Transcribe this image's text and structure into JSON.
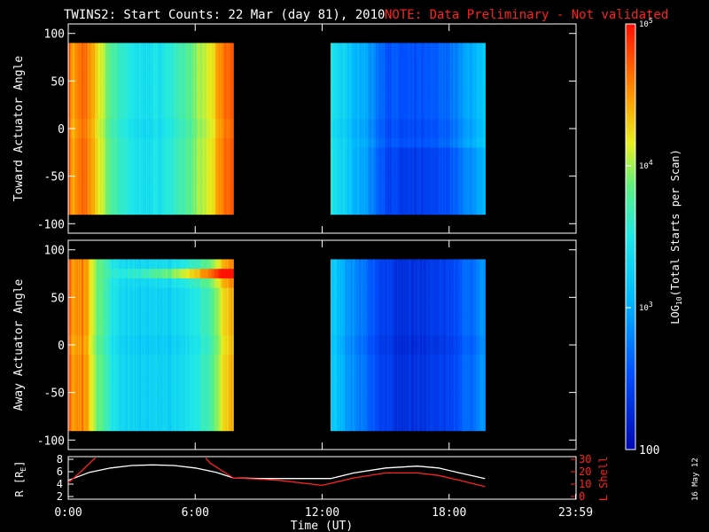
{
  "title": {
    "text": "TWINS2: Start Counts: 22 Mar (day  81), 2010",
    "note": "NOTE: Data Preliminary - Not validated",
    "note_color": "#ff2020"
  },
  "colorbar": {
    "label_main": "LOG",
    "label_sub": "10",
    "label_rest": "(Total Starts per Scan)",
    "ticks": [
      {
        "value": 100,
        "label": "100"
      },
      {
        "value": 1000,
        "label": "10",
        "sup": "3"
      },
      {
        "value": 10000,
        "label": "10",
        "sup": "4"
      },
      {
        "value": 100000,
        "label": "10",
        "sup": "5"
      }
    ],
    "range": [
      100,
      100000
    ],
    "scale": "log"
  },
  "side_text": "16 May 12",
  "chart_data": [
    {
      "type": "heatmap",
      "ylabel": "Toward Actuator Angle",
      "ylim": [
        -110,
        110
      ],
      "yticks": [
        "100",
        "50",
        "0",
        "-50",
        "-100"
      ],
      "ytick_values": [
        100,
        50,
        0,
        -50,
        -100
      ],
      "xlim_hours": [
        0,
        24
      ],
      "data_y_range": [
        -90,
        90
      ],
      "blocks": [
        {
          "t_start_hours": 0.0,
          "t_end_hours": 7.8,
          "profile": [
            {
              "t": 0.0,
              "log": 4.9
            },
            {
              "t": 0.2,
              "log": 4.4
            },
            {
              "t": 0.7,
              "log": 4.7
            },
            {
              "t": 1.3,
              "log": 4.3
            },
            {
              "t": 2.0,
              "log": 3.8
            },
            {
              "t": 3.0,
              "log": 3.45
            },
            {
              "t": 4.0,
              "log": 3.4
            },
            {
              "t": 5.0,
              "log": 3.6
            },
            {
              "t": 6.0,
              "log": 3.9
            },
            {
              "t": 6.8,
              "log": 4.2
            },
            {
              "t": 7.3,
              "log": 4.6
            },
            {
              "t": 7.8,
              "log": 4.75
            }
          ]
        },
        {
          "t_start_hours": 12.4,
          "t_end_hours": 19.7,
          "profile": [
            {
              "t": 12.4,
              "log": 3.5
            },
            {
              "t": 13.2,
              "log": 3.2
            },
            {
              "t": 14.0,
              "log": 3.0
            },
            {
              "t": 15.0,
              "log": 2.6
            },
            {
              "t": 16.0,
              "log": 2.5
            },
            {
              "t": 17.0,
              "log": 2.55
            },
            {
              "t": 18.0,
              "log": 2.7
            },
            {
              "t": 19.0,
              "log": 3.0
            },
            {
              "t": 19.7,
              "log": 3.2
            }
          ]
        }
      ]
    },
    {
      "type": "heatmap",
      "ylabel": "Away Actuator Angle",
      "ylim": [
        -110,
        110
      ],
      "yticks": [
        "100",
        "50",
        "0",
        "-50",
        "-100"
      ],
      "ytick_values": [
        100,
        50,
        0,
        -50,
        -100
      ],
      "xlim_hours": [
        0,
        24
      ],
      "data_y_range": [
        -90,
        90
      ],
      "blocks": [
        {
          "t_start_hours": 0.0,
          "t_end_hours": 7.8,
          "profile": [
            {
              "t": 0.0,
              "log": 4.9
            },
            {
              "t": 0.2,
              "log": 4.4
            },
            {
              "t": 0.7,
              "log": 4.6
            },
            {
              "t": 1.3,
              "log": 4.0
            },
            {
              "t": 2.0,
              "log": 3.5
            },
            {
              "t": 3.0,
              "log": 3.3
            },
            {
              "t": 4.0,
              "log": 3.25
            },
            {
              "t": 5.0,
              "log": 3.3
            },
            {
              "t": 6.0,
              "log": 3.5
            },
            {
              "t": 6.8,
              "log": 3.8
            },
            {
              "t": 7.3,
              "log": 4.2
            },
            {
              "t": 7.8,
              "log": 4.4
            }
          ],
          "hot_band": {
            "angle_center": 75,
            "angle_halfwidth": 12,
            "t_from": 1.5,
            "log_boost": 0.9
          }
        },
        {
          "t_start_hours": 12.4,
          "t_end_hours": 19.7,
          "profile": [
            {
              "t": 12.4,
              "log": 3.3
            },
            {
              "t": 13.2,
              "log": 2.9
            },
            {
              "t": 14.0,
              "log": 2.7
            },
            {
              "t": 15.0,
              "log": 2.4
            },
            {
              "t": 16.0,
              "log": 2.3
            },
            {
              "t": 17.0,
              "log": 2.35
            },
            {
              "t": 18.0,
              "log": 2.45
            },
            {
              "t": 19.0,
              "log": 2.7
            },
            {
              "t": 19.7,
              "log": 2.9
            }
          ]
        }
      ]
    },
    {
      "type": "line",
      "ylabel_left": "R [R",
      "ylabel_left_sub": "E",
      "ylabel_left_end": "]",
      "ylabel_right": "L Shell",
      "ylim_left": [
        2,
        8
      ],
      "yticks_left": [
        "8",
        "6",
        "4",
        "2"
      ],
      "ytick_left_values": [
        8,
        6,
        4,
        2
      ],
      "ylim_right": [
        0,
        30
      ],
      "yticks_right": [
        "30",
        "20",
        "10",
        "0"
      ],
      "ytick_right_values": [
        30,
        20,
        10,
        0
      ],
      "xlabel": "Time (UT)",
      "xticks": [
        "0:00",
        "6:00",
        "12:00",
        "18:00",
        "23:59"
      ],
      "xtick_hours": [
        0,
        6,
        12,
        18,
        23.98
      ],
      "series": [
        {
          "color": "#ffffff",
          "axis": "left",
          "points": [
            [
              0,
              4.6
            ],
            [
              1,
              5.9
            ],
            [
              2,
              6.6
            ],
            [
              3,
              7.0
            ],
            [
              4,
              7.1
            ],
            [
              5,
              7.0
            ],
            [
              6,
              6.6
            ],
            [
              7,
              5.9
            ],
            [
              7.8,
              5.0
            ],
            [
              9,
              4.9
            ],
            [
              10,
              4.9
            ],
            [
              11,
              4.9
            ],
            [
              12.4,
              4.9
            ],
            [
              13.5,
              5.8
            ],
            [
              15,
              6.6
            ],
            [
              16.5,
              6.9
            ],
            [
              17.5,
              6.6
            ],
            [
              18.5,
              5.8
            ],
            [
              19.7,
              4.9
            ]
          ]
        },
        {
          "color": "#ff2020",
          "axis": "right",
          "points": [
            [
              0,
              11
            ],
            [
              0.6,
              20
            ],
            [
              1.2,
              30
            ],
            [
              1.3,
              31
            ]
          ]
        },
        {
          "color": "#ff2020",
          "axis": "right",
          "points": [
            [
              6.5,
              31
            ],
            [
              6.7,
              27
            ],
            [
              7.8,
              15
            ],
            [
              9,
              14
            ],
            [
              10,
              13
            ],
            [
              12,
              9
            ],
            [
              13.5,
              15
            ],
            [
              15,
              19
            ],
            [
              16.5,
              19
            ],
            [
              17.5,
              17
            ],
            [
              18.5,
              13
            ],
            [
              19.7,
              8
            ]
          ]
        }
      ]
    }
  ]
}
